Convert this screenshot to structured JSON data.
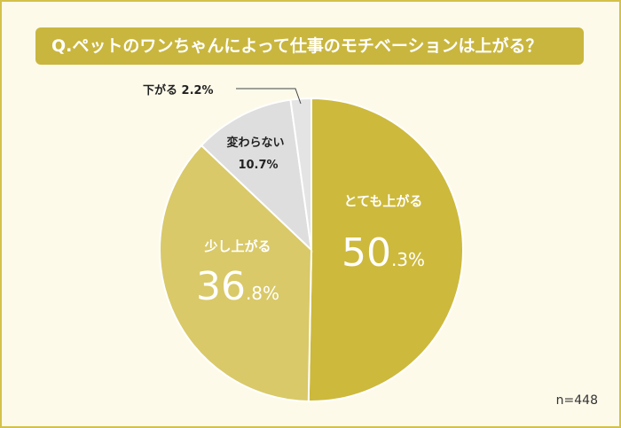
{
  "chart_data": {
    "type": "pie",
    "title": "Q.ペットのワンちゃんによって仕事のモチベーションは上がる？",
    "note": "n=448",
    "slices": [
      {
        "label": "とても上がる",
        "value": 50.3,
        "color": "#cdb93c",
        "big_text": "50",
        "small_text": ".3%",
        "value_text": "50.3%"
      },
      {
        "label": "少し上がる",
        "value": 36.8,
        "color": "#d9c968",
        "big_text": "36",
        "small_text": ".8%",
        "value_text": "36.8%"
      },
      {
        "label": "変わらない",
        "value": 10.7,
        "color": "#dedede",
        "value_text": "10.7%"
      },
      {
        "label": "下がる",
        "value": 2.2,
        "color": "#e4e4e4",
        "value_text": "2.2%",
        "callout_text": "下がる 2.2%"
      }
    ]
  }
}
